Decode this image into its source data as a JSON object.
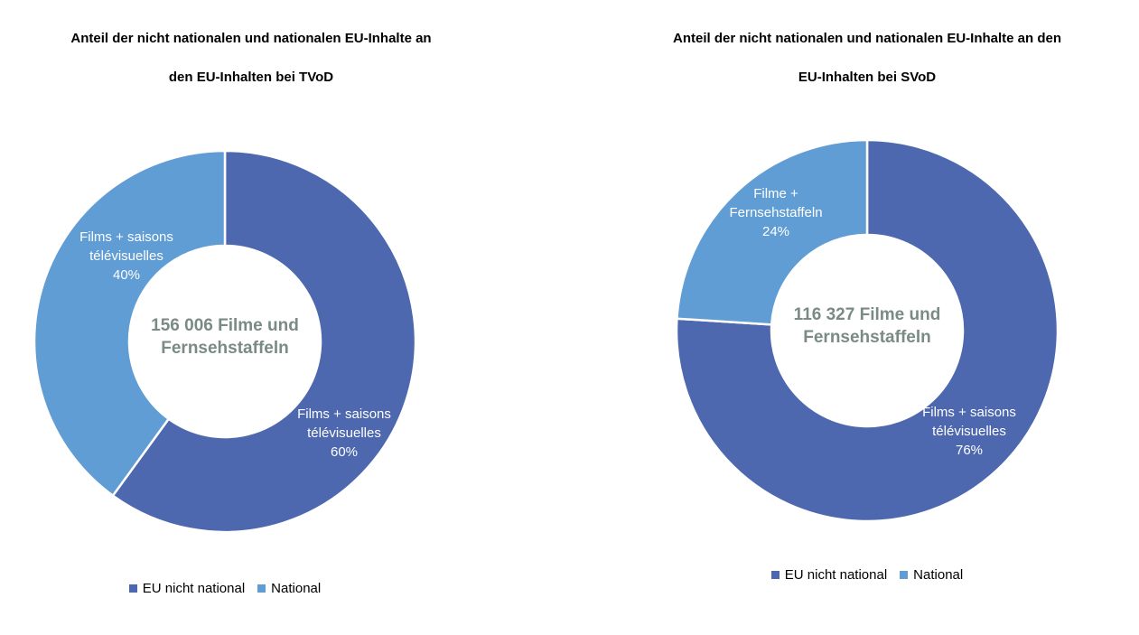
{
  "colors": {
    "eu_non_national": "#4D68AF",
    "national": "#609DD5",
    "center_text": "#7A8A84",
    "title_text": "#000000",
    "separator": "#FFFFFF",
    "background": "#FFFFFF"
  },
  "chart_data": [
    {
      "type": "donut",
      "title": "Anteil der nicht nationalen und nationalen EU-Inhalte an\nden EU-Inhalten bei TVoD",
      "center_label": "156 006 Filme und\nFernsehstaffeln",
      "total": "156 006",
      "legend_position": "bottom",
      "slices": [
        {
          "series": "EU nicht national",
          "percent": 60,
          "label": "Films + saisons\ntélévisuelles\n60%",
          "color_key": "eu_non_national"
        },
        {
          "series": "National",
          "percent": 40,
          "label": "Films + saisons\ntélévisuelles\n40%",
          "color_key": "national"
        }
      ],
      "legend": [
        {
          "label": "EU nicht national",
          "color_key": "eu_non_national"
        },
        {
          "label": "National",
          "color_key": "national"
        }
      ]
    },
    {
      "type": "donut",
      "title": "Anteil der nicht nationalen und nationalen EU-Inhalte an den\nEU-Inhalten bei SVoD",
      "center_label": "116 327 Filme und\nFernsehstaffeln",
      "total": "116 327",
      "legend_position": "bottom",
      "slices": [
        {
          "series": "EU nicht national",
          "percent": 76,
          "label": "Films + saisons\ntélévisuelles\n76%",
          "color_key": "eu_non_national"
        },
        {
          "series": "National",
          "percent": 24,
          "label": "Filme +\nFernsehstaffeln\n24%",
          "color_key": "national"
        }
      ],
      "legend": [
        {
          "label": "EU nicht national",
          "color_key": "eu_non_national"
        },
        {
          "label": "National",
          "color_key": "national"
        }
      ]
    }
  ]
}
